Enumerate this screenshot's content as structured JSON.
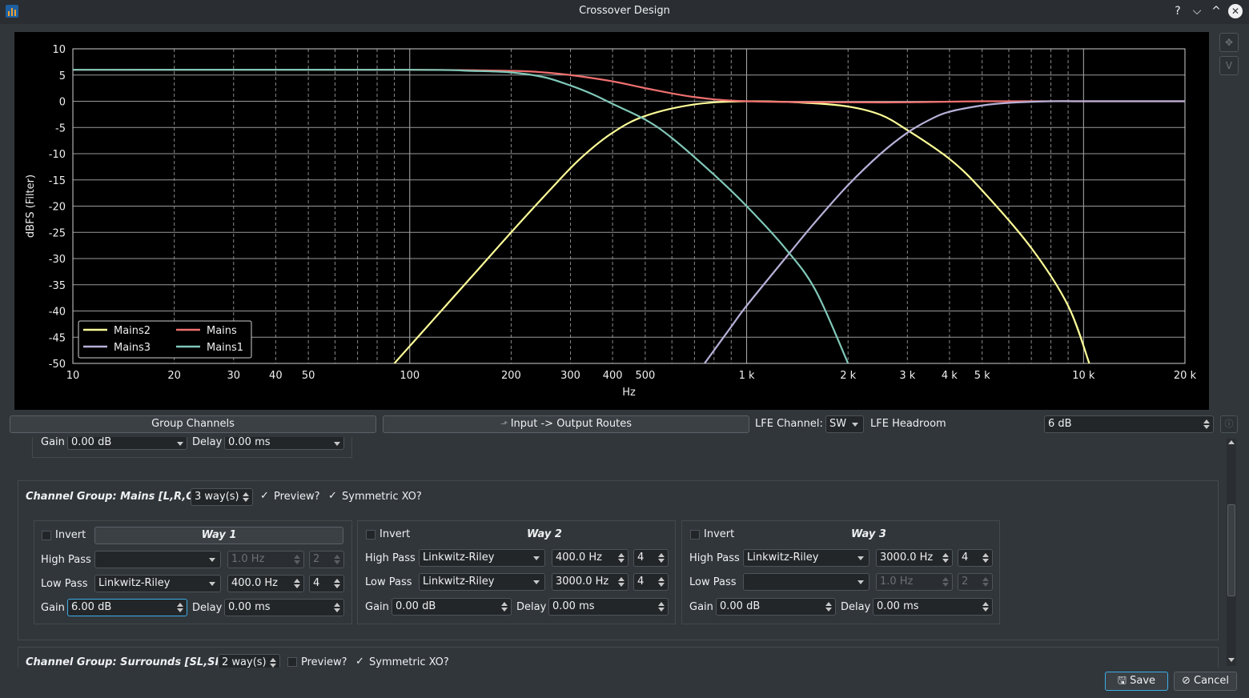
{
  "window": {
    "title": "Crossover Design",
    "controls": [
      "?",
      "⌵",
      "^",
      "✕"
    ]
  },
  "chart_data": {
    "type": "line",
    "title": "",
    "xlabel": "Hz",
    "ylabel": "dBFS (Filter)",
    "xscale": "log",
    "xlim": [
      10,
      20000
    ],
    "ylim": [
      -50,
      10
    ],
    "x_tick_values": [
      10,
      20,
      30,
      40,
      50,
      100,
      200,
      300,
      400,
      500,
      1000,
      2000,
      3000,
      4000,
      5000,
      10000,
      20000
    ],
    "x_tick_labels": [
      "10",
      "20",
      "30",
      "40",
      "50",
      "100",
      "200",
      "300",
      "400",
      "500",
      "1 k",
      "2 k",
      "3 k",
      "4 k",
      "5 k",
      "10 k",
      "20 k"
    ],
    "y_ticks": [
      10,
      5,
      0,
      -5,
      -10,
      -15,
      -20,
      -25,
      -30,
      -35,
      -40,
      -45,
      -50
    ],
    "grid": true,
    "legend_position": "lower-left",
    "series": [
      {
        "name": "Mains2",
        "color": "#ffff99",
        "x": [
          90,
          120,
          160,
          200,
          260,
          320,
          400,
          500,
          700,
          1000,
          1500,
          2000,
          2500,
          3000,
          4000,
          5000,
          7000,
          9000,
          10400
        ],
        "y": [
          -50,
          -41,
          -32,
          -25,
          -17,
          -11,
          -6,
          -2.8,
          -0.6,
          0,
          -0.3,
          -1,
          -2.6,
          -5.5,
          -11,
          -17,
          -28,
          -39,
          -50
        ]
      },
      {
        "name": "Mains",
        "color": "#f07070",
        "x": [
          10,
          100,
          200,
          250,
          300,
          400,
          500,
          700,
          1000,
          2000,
          3000,
          5000,
          10000,
          20000
        ],
        "y": [
          6,
          6,
          5.8,
          5.5,
          5,
          3.8,
          2.5,
          0.8,
          0,
          -0.2,
          -0.2,
          0,
          0,
          0
        ]
      },
      {
        "name": "Mains3",
        "color": "#b8b0d8",
        "x": [
          750,
          900,
          1000,
          1300,
          1600,
          2000,
          2500,
          3000,
          3500,
          4000,
          5000,
          6000,
          8000,
          10000,
          20000
        ],
        "y": [
          -50,
          -43,
          -39,
          -30,
          -23,
          -16,
          -10,
          -6,
          -3.5,
          -2,
          -0.8,
          -0.3,
          0,
          0,
          0
        ]
      },
      {
        "name": "Mains1",
        "color": "#80c8b8",
        "x": [
          10,
          100,
          150,
          200,
          250,
          300,
          350,
          400,
          500,
          600,
          800,
          1000,
          1300,
          1600,
          2000
        ],
        "y": [
          6,
          6,
          5.8,
          5.5,
          4.6,
          3,
          1.3,
          -0.5,
          -3.5,
          -7,
          -14,
          -20,
          -28,
          -36,
          -50
        ]
      }
    ]
  },
  "toolbar": {
    "group_channels": "Group Channels",
    "routes": "Input -> Output Routes",
    "lfe_channel_label": "LFE Channel:",
    "lfe_channel_value": "SW",
    "lfe_headroom_label": "LFE Headroom",
    "lfe_headroom_value": "6 dB"
  },
  "prev_group": {
    "gain_label": "Gain",
    "gain_value": "0.00 dB",
    "delay_label": "Delay",
    "delay_value": "0.00 ms"
  },
  "mains_group": {
    "title": "Channel Group: Mains [L,R,C]",
    "ways_value": "3 way(s)",
    "preview_label": "Preview?",
    "symmetric_label": "Symmetric XO?",
    "ways": [
      {
        "title": "Way 1",
        "invert_label": "Invert",
        "hp_label": "High Pass",
        "hp_type": "",
        "hp_freq": "1.0 Hz",
        "hp_order": "2",
        "lp_label": "Low Pass",
        "lp_type": "Linkwitz-Riley",
        "lp_freq": "400.0 Hz",
        "lp_order": "4",
        "gain_label": "Gain",
        "gain_value": "6.00 dB",
        "delay_label": "Delay",
        "delay_value": "0.00 ms"
      },
      {
        "title": "Way 2",
        "invert_label": "Invert",
        "hp_label": "High Pass",
        "hp_type": "Linkwitz-Riley",
        "hp_freq": "400.0 Hz",
        "hp_order": "4",
        "lp_label": "Low Pass",
        "lp_type": "Linkwitz-Riley",
        "lp_freq": "3000.0 Hz",
        "lp_order": "4",
        "gain_label": "Gain",
        "gain_value": "0.00 dB",
        "delay_label": "Delay",
        "delay_value": "0.00 ms"
      },
      {
        "title": "Way 3",
        "invert_label": "Invert",
        "hp_label": "High Pass",
        "hp_type": "Linkwitz-Riley",
        "hp_freq": "3000.0 Hz",
        "hp_order": "4",
        "lp_label": "Low Pass",
        "lp_type": "",
        "lp_freq": "1.0 Hz",
        "lp_order": "2",
        "gain_label": "Gain",
        "gain_value": "0.00 dB",
        "delay_label": "Delay",
        "delay_value": "0.00 ms"
      }
    ]
  },
  "surrounds_group": {
    "title": "Channel Group: Surrounds [SL,SR]",
    "ways_value": "2 way(s)",
    "preview_label": "Preview?",
    "symmetric_label": "Symmetric XO?"
  },
  "footer": {
    "save": "Save",
    "cancel": "Cancel"
  }
}
